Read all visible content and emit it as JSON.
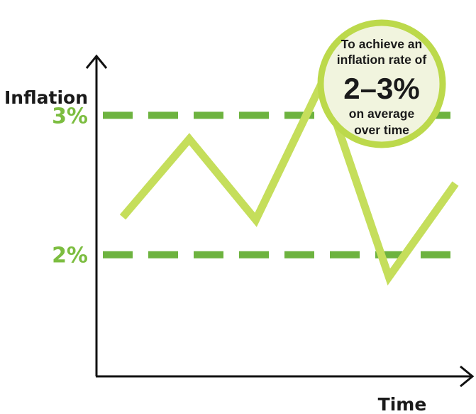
{
  "chart_data": {
    "type": "line",
    "xlabel": "Time",
    "ylabel": "Inflation",
    "ylim": [
      1.0,
      3.7
    ],
    "grid": false,
    "x": [
      0,
      1,
      2,
      3,
      4,
      5
    ],
    "series": [
      {
        "values": [
          2.27,
          2.83,
          2.25,
          3.24,
          1.84,
          2.51
        ]
      }
    ],
    "reference_lines": [
      {
        "label": "3%",
        "value": 3.0,
        "style": "dashed"
      },
      {
        "label": "2%",
        "value": 2.0,
        "style": "dashed"
      }
    ],
    "annotation": {
      "line1": "To achieve an",
      "line2": "inflation rate of",
      "highlight": "2–3%",
      "line3": "on average",
      "line4": "over time"
    },
    "colors": {
      "line": "#c5de5b",
      "dashes": "#6db33f",
      "ref_labels": "#7cbd40",
      "axes": "#111111",
      "callout_border": "#bcd94b",
      "callout_fill": "#f1f4de"
    }
  }
}
